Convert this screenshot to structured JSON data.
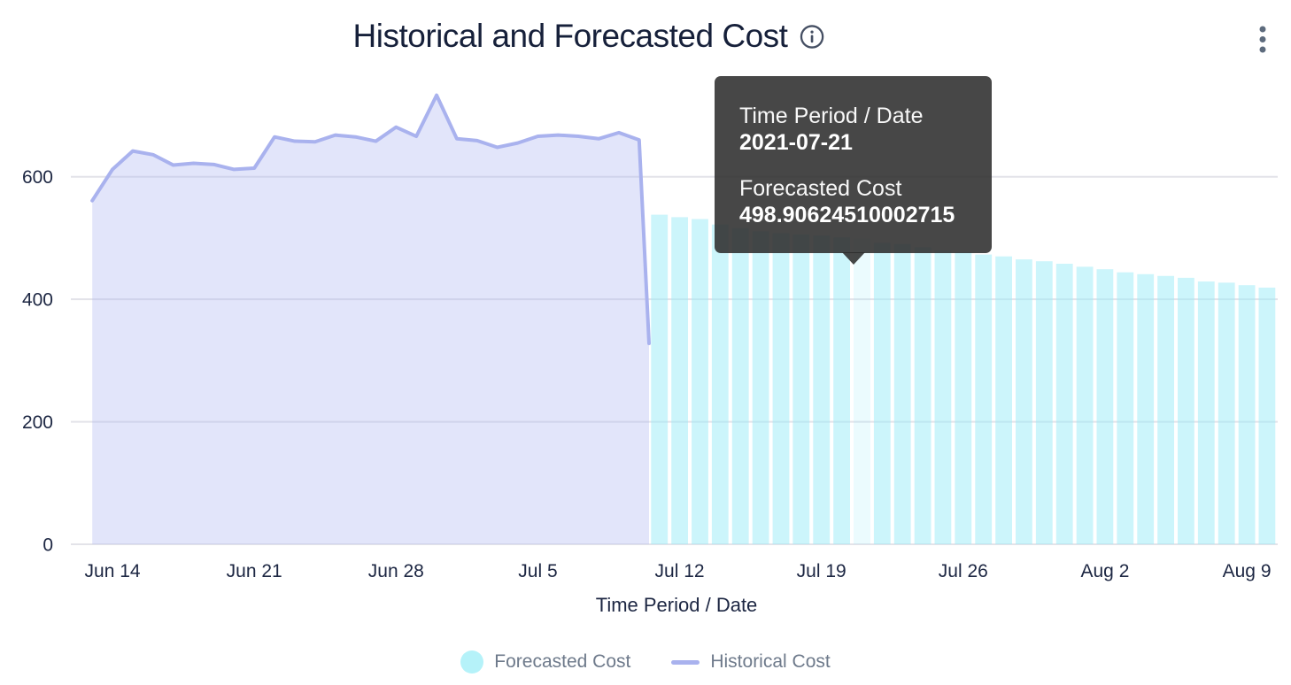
{
  "header": {
    "title": "Historical and Forecasted Cost"
  },
  "tooltip": {
    "rows": [
      {
        "label": "Time Period / Date",
        "value": "2021-07-21"
      },
      {
        "label": "Forecasted Cost",
        "value": "498.90624510002715"
      }
    ]
  },
  "legend": {
    "items": [
      {
        "label": "Forecasted Cost",
        "swatch": "circle",
        "color": "#b5f2f9"
      },
      {
        "label": "Historical Cost",
        "swatch": "line",
        "color": "#a9b2ee"
      }
    ]
  },
  "chart_data": {
    "type": "mixed",
    "title": "Historical and Forecasted Cost",
    "xlabel": "Time Period / Date",
    "ylabel": "",
    "ylim": [
      0,
      760
    ],
    "yticks": [
      0,
      200,
      400,
      600
    ],
    "grid": "horizontal-only",
    "legend_position": "bottom-center",
    "xticks": [
      {
        "label": "Jun 14",
        "date": "2021-06-14"
      },
      {
        "label": "Jun 21",
        "date": "2021-06-21"
      },
      {
        "label": "Jun 28",
        "date": "2021-06-28"
      },
      {
        "label": "Jul 5",
        "date": "2021-07-05"
      },
      {
        "label": "Jul 12",
        "date": "2021-07-12"
      },
      {
        "label": "Jul 19",
        "date": "2021-07-19"
      },
      {
        "label": "Jul 26",
        "date": "2021-07-26"
      },
      {
        "label": "Aug 2",
        "date": "2021-08-02"
      },
      {
        "label": "Aug 9",
        "date": "2021-08-09"
      }
    ],
    "hover": {
      "date": "2021-07-21",
      "series": "Forecasted Cost",
      "value": 498.90624510002715
    },
    "series": [
      {
        "name": "Historical Cost",
        "type": "area-line",
        "line_color": "#a9b2ee",
        "fill_color": "rgba(173,181,242,0.35)",
        "start_date": "2021-06-13",
        "values": [
          561,
          612,
          642,
          636,
          619,
          622,
          620,
          612,
          614,
          665,
          658,
          657,
          668,
          665,
          658,
          681,
          666,
          733,
          662,
          659,
          648,
          655,
          666,
          668,
          666,
          662,
          672,
          660
        ]
      },
      {
        "name": "Forecasted Cost",
        "type": "bar",
        "bar_color": "rgba(153,236,248,0.5)",
        "highlight_color": "rgba(153,236,248,0.2)",
        "start_date": "2021-07-11",
        "highlighted_date": "2021-07-21",
        "values": [
          538,
          534,
          531,
          522,
          516,
          511,
          508,
          506,
          504,
          501,
          498.90624510002715,
          492,
          490,
          485,
          480,
          477,
          473,
          470,
          465,
          462,
          458,
          453,
          449,
          444,
          441,
          438,
          435,
          429,
          427,
          423,
          419
        ]
      }
    ]
  }
}
